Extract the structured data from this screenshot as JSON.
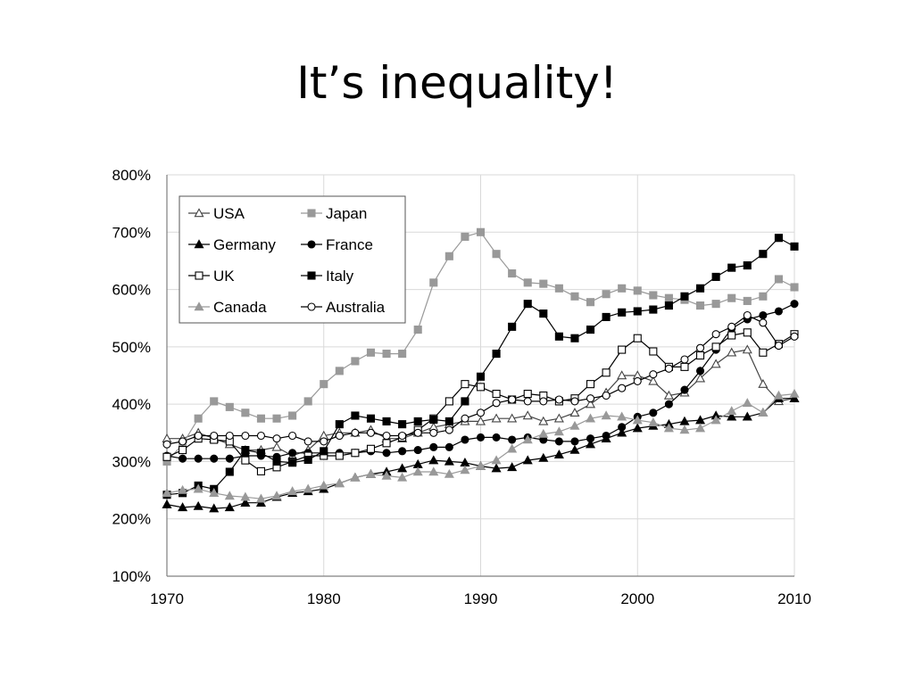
{
  "slide": {
    "title": "It’s inequality!"
  },
  "chart_data": {
    "type": "line",
    "title": "",
    "xlabel": "",
    "ylabel": "",
    "xlim": [
      1970,
      2010
    ],
    "ylim": [
      100,
      800
    ],
    "x_ticks": [
      1970,
      1980,
      1990,
      2000,
      2010
    ],
    "y_ticks": [
      100,
      200,
      300,
      400,
      500,
      600,
      700,
      800
    ],
    "y_tick_format": "%",
    "grid": true,
    "legend": "top-left",
    "x": [
      1970,
      1971,
      1972,
      1973,
      1974,
      1975,
      1976,
      1977,
      1978,
      1979,
      1980,
      1981,
      1982,
      1983,
      1984,
      1985,
      1986,
      1987,
      1988,
      1989,
      1990,
      1991,
      1992,
      1993,
      1994,
      1995,
      1996,
      1997,
      1998,
      1999,
      2000,
      2001,
      2002,
      2003,
      2004,
      2005,
      2006,
      2007,
      2008,
      2009,
      2010
    ],
    "series": [
      {
        "name": "USA",
        "marker": "triangle",
        "filled": false,
        "color": "#444444",
        "values": [
          340,
          340,
          350,
          340,
          330,
          320,
          320,
          325,
          310,
          320,
          345,
          350,
          350,
          355,
          340,
          340,
          350,
          360,
          365,
          370,
          370,
          375,
          375,
          380,
          370,
          375,
          385,
          400,
          420,
          450,
          450,
          440,
          415,
          420,
          445,
          470,
          490,
          495,
          435,
          405,
          410
        ]
      },
      {
        "name": "Japan",
        "marker": "square",
        "filled": true,
        "color": "#999999",
        "values": [
          300,
          330,
          375,
          405,
          395,
          385,
          375,
          375,
          380,
          405,
          435,
          458,
          475,
          490,
          488,
          488,
          530,
          612,
          658,
          692,
          700,
          662,
          628,
          612,
          610,
          602,
          588,
          578,
          592,
          602,
          598,
          590,
          585,
          582,
          572,
          575,
          585,
          580,
          588,
          618,
          604
        ]
      },
      {
        "name": "Germany",
        "marker": "triangle",
        "filled": true,
        "color": "#000000",
        "values": [
          225,
          220,
          222,
          218,
          220,
          228,
          228,
          238,
          245,
          248,
          252,
          262,
          272,
          278,
          282,
          288,
          295,
          302,
          300,
          298,
          292,
          288,
          290,
          302,
          306,
          312,
          320,
          330,
          340,
          350,
          358,
          362,
          365,
          370,
          372,
          380,
          378,
          378,
          385,
          410,
          410
        ]
      },
      {
        "name": "France",
        "marker": "circle",
        "filled": true,
        "color": "#000000",
        "values": [
          310,
          305,
          305,
          305,
          305,
          310,
          310,
          308,
          315,
          315,
          315,
          315,
          315,
          318,
          315,
          318,
          320,
          325,
          325,
          338,
          342,
          342,
          338,
          342,
          338,
          335,
          335,
          340,
          345,
          360,
          378,
          385,
          400,
          425,
          458,
          495,
          532,
          548,
          555,
          562,
          575
        ]
      },
      {
        "name": "UK",
        "marker": "square",
        "filled": false,
        "color": "#000000",
        "values": [
          308,
          320,
          340,
          338,
          335,
          302,
          283,
          290,
          300,
          310,
          310,
          310,
          315,
          322,
          332,
          342,
          355,
          375,
          405,
          435,
          430,
          418,
          408,
          418,
          415,
          405,
          410,
          435,
          455,
          495,
          515,
          492,
          465,
          465,
          485,
          500,
          520,
          525,
          490,
          505,
          522
        ]
      },
      {
        "name": "Italy",
        "marker": "square",
        "filled": true,
        "color": "#000000",
        "values": [
          242,
          245,
          258,
          252,
          282,
          320,
          315,
          300,
          298,
          303,
          318,
          365,
          380,
          375,
          370,
          365,
          370,
          373,
          370,
          405,
          448,
          488,
          535,
          575,
          558,
          518,
          515,
          530,
          552,
          560,
          562,
          565,
          572,
          588,
          602,
          622,
          638,
          642,
          662,
          690,
          675
        ]
      },
      {
        "name": "Canada",
        "marker": "triangle",
        "filled": true,
        "color": "#999999",
        "values": [
          245,
          250,
          252,
          245,
          240,
          238,
          235,
          240,
          248,
          252,
          258,
          262,
          272,
          278,
          275,
          272,
          282,
          282,
          278,
          285,
          292,
          302,
          322,
          338,
          348,
          352,
          362,
          375,
          380,
          378,
          372,
          368,
          358,
          355,
          358,
          372,
          388,
          402,
          385,
          415,
          418
        ]
      },
      {
        "name": "Australia",
        "marker": "circle",
        "filled": false,
        "color": "#000000",
        "values": [
          330,
          335,
          345,
          345,
          345,
          345,
          345,
          340,
          345,
          335,
          335,
          345,
          350,
          350,
          345,
          345,
          350,
          350,
          355,
          375,
          385,
          402,
          408,
          405,
          405,
          408,
          405,
          410,
          415,
          428,
          440,
          452,
          462,
          478,
          498,
          522,
          535,
          555,
          542,
          502,
          518
        ]
      }
    ]
  }
}
